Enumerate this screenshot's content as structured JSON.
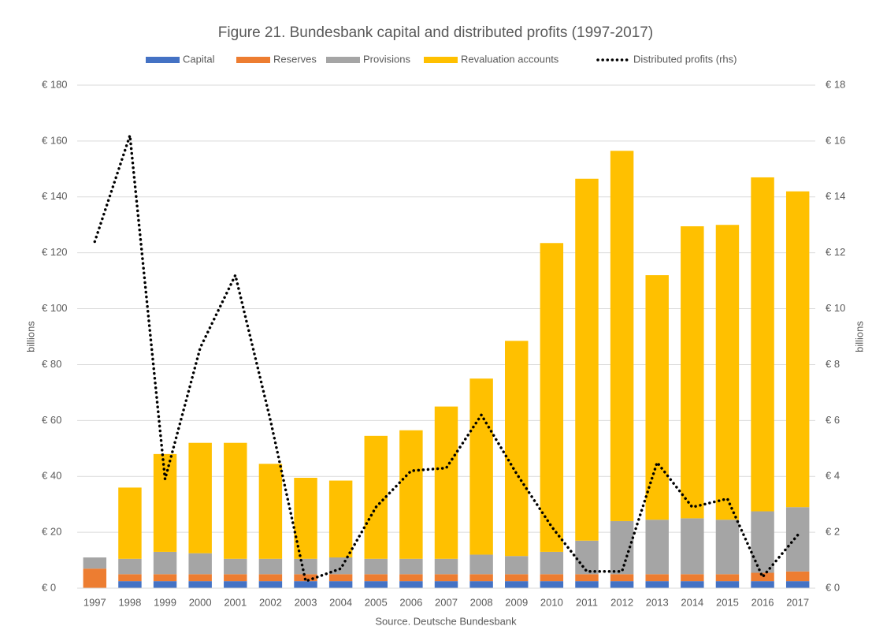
{
  "chart_data": {
    "type": "bar",
    "stacked": true,
    "title": "Figure 21. Bundesbank capital and distributed profits (1997-2017)",
    "ylabel": "billions",
    "y2label": "billions",
    "source": "Source. Deutsche Bundesbank",
    "categories": [
      "1997",
      "1998",
      "1999",
      "2000",
      "2001",
      "2002",
      "2003",
      "2004",
      "2005",
      "2006",
      "2007",
      "2008",
      "2009",
      "2010",
      "2011",
      "2012",
      "2013",
      "2014",
      "2015",
      "2016",
      "2017"
    ],
    "series": [
      {
        "name": "Capital",
        "color": "#4472c4",
        "values": [
          null,
          2.5,
          2.5,
          2.5,
          2.5,
          2.5,
          2.5,
          2.5,
          2.5,
          2.5,
          2.5,
          2.5,
          2.5,
          2.5,
          2.5,
          2.5,
          2.5,
          2.5,
          2.5,
          2.5,
          2.5
        ]
      },
      {
        "name": "Reserves",
        "color": "#ed7d31",
        "values": [
          7,
          2.5,
          2.5,
          2.5,
          2.5,
          2.5,
          2.5,
          2.5,
          2.5,
          2.5,
          2.5,
          2.5,
          2.5,
          2.5,
          2.5,
          2.5,
          2.5,
          2.5,
          2.5,
          3,
          3.5
        ]
      },
      {
        "name": "Provisions",
        "color": "#a5a5a5",
        "values": [
          4,
          5.5,
          8,
          7.5,
          5.5,
          5.5,
          5.5,
          6,
          5.5,
          5.5,
          5.5,
          7,
          6.5,
          8,
          12,
          19,
          19.5,
          20,
          19.5,
          22,
          23
        ]
      },
      {
        "name": "Revaluation accounts",
        "color": "#ffc000",
        "values": [
          0,
          25.5,
          35,
          39.5,
          41.5,
          34,
          29,
          27.5,
          44,
          46,
          54.5,
          63,
          77,
          110.5,
          129.5,
          132.5,
          87.5,
          104.5,
          105.5,
          119.5,
          113
        ]
      },
      {
        "name": "Distributed profits (rhs)",
        "color": "#000000",
        "type": "line",
        "axis": "y2",
        "values": [
          12.4,
          16.2,
          3.9,
          8.6,
          11.2,
          6.0,
          0.25,
          0.7,
          2.9,
          4.2,
          4.3,
          6.2,
          4.1,
          2.2,
          0.6,
          0.6,
          4.5,
          2.9,
          3.2,
          0.4,
          1.9
        ]
      }
    ],
    "ylim": [
      0,
      180
    ],
    "yticks": [
      {
        "value": 0,
        "label": "€ 0"
      },
      {
        "value": 20,
        "label": "€ 20"
      },
      {
        "value": 40,
        "label": "€ 40"
      },
      {
        "value": 60,
        "label": "€ 60"
      },
      {
        "value": 80,
        "label": "€ 80"
      },
      {
        "value": 100,
        "label": "€ 100"
      },
      {
        "value": 120,
        "label": "€ 120"
      },
      {
        "value": 140,
        "label": "€ 140"
      },
      {
        "value": 160,
        "label": "€ 160"
      },
      {
        "value": 180,
        "label": "€ 180"
      }
    ],
    "y2lim": [
      0,
      18
    ],
    "y2ticks": [
      {
        "value": 0,
        "label": "€ 0"
      },
      {
        "value": 2,
        "label": "€ 2"
      },
      {
        "value": 4,
        "label": "€ 4"
      },
      {
        "value": 6,
        "label": "€ 6"
      },
      {
        "value": 8,
        "label": "€ 8"
      },
      {
        "value": 10,
        "label": "€ 10"
      },
      {
        "value": 12,
        "label": "€ 12"
      },
      {
        "value": 14,
        "label": "€ 14"
      },
      {
        "value": 16,
        "label": "€ 16"
      },
      {
        "value": 18,
        "label": "€ 18"
      }
    ],
    "grid": true,
    "legend": "top"
  }
}
